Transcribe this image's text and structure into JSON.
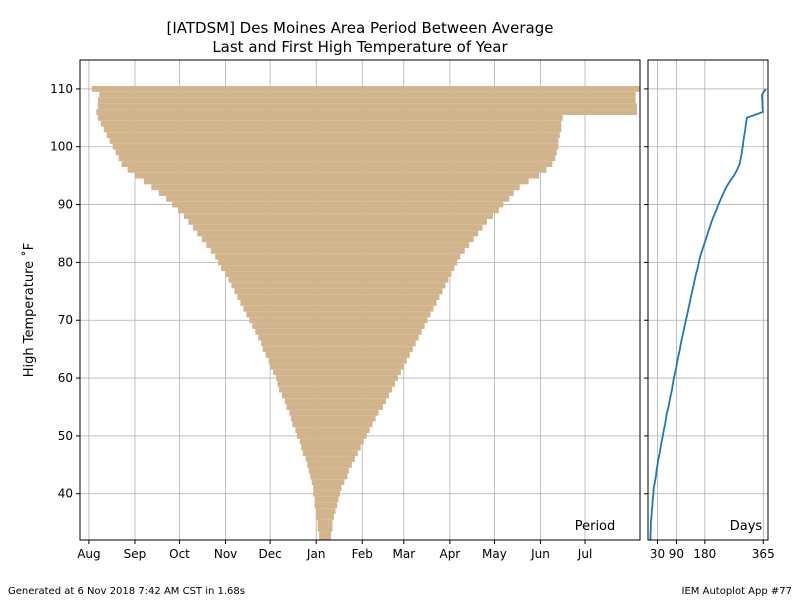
{
  "title_line1": "[IATDSM] Des Moines Area Period Between Average",
  "title_line2": "Last and First High Temperature of Year",
  "ylabel": "High Temperature $^\\circ$F",
  "ylabel_display": "High Temperature ˚F",
  "footer_left": "Generated at 6 Nov 2018 7:42 AM CST in 1.68s",
  "footer_right": "IEM Autoplot App #77",
  "colors": {
    "bar": "#d2b48c",
    "line": "#1f77b4",
    "grid": "#b0b0b0"
  },
  "chart_data": [
    {
      "type": "bar",
      "orientation": "horizontal",
      "annotation": "Period",
      "xlabel": "",
      "x_ticks": [
        "Aug",
        "Sep",
        "Oct",
        "Nov",
        "Dec",
        "Jan",
        "Feb",
        "Mar",
        "Apr",
        "May",
        "Jun",
        "Jul"
      ],
      "x_tick_days_from_aug1": [
        0,
        31,
        61,
        92,
        122,
        153,
        184,
        212,
        243,
        273,
        304,
        334
      ],
      "xlim_days_from_aug1": [
        -6,
        371
      ],
      "y_ticks": [
        40,
        50,
        60,
        70,
        80,
        90,
        100,
        110
      ],
      "ylim": [
        32,
        115
      ],
      "grid": true,
      "temps": [
        32,
        33,
        34,
        35,
        36,
        37,
        38,
        39,
        40,
        41,
        42,
        43,
        44,
        45,
        46,
        47,
        48,
        49,
        50,
        51,
        52,
        53,
        54,
        55,
        56,
        57,
        58,
        59,
        60,
        61,
        62,
        63,
        64,
        65,
        66,
        67,
        68,
        69,
        70,
        71,
        72,
        73,
        74,
        75,
        76,
        77,
        78,
        79,
        80,
        81,
        82,
        83,
        84,
        85,
        86,
        87,
        88,
        89,
        90,
        91,
        92,
        93,
        94,
        95,
        96,
        97,
        98,
        99,
        100,
        101,
        102,
        103,
        104,
        105,
        106,
        107,
        108,
        109,
        110
      ],
      "start_days_from_aug1": [
        155,
        155,
        154,
        154,
        153,
        153,
        152,
        152,
        151,
        151,
        150,
        149,
        148,
        147,
        146,
        144,
        143,
        142,
        140,
        139,
        137,
        136,
        135,
        133,
        132,
        130,
        128,
        127,
        126,
        124,
        122,
        121,
        119,
        117,
        116,
        114,
        112,
        110,
        108,
        106,
        104,
        102,
        100,
        98,
        96,
        94,
        92,
        89,
        87,
        85,
        82,
        79,
        76,
        73,
        70,
        67,
        64,
        60,
        56,
        52,
        47,
        42,
        37,
        31,
        26,
        22,
        20,
        18,
        16,
        14,
        12,
        10,
        8,
        6,
        5,
        6,
        6,
        7,
        2
      ],
      "end_days_from_aug1": [
        163,
        163,
        164,
        164,
        165,
        166,
        167,
        168,
        169,
        170,
        172,
        174,
        175,
        177,
        179,
        181,
        183,
        185,
        187,
        189,
        191,
        193,
        195,
        198,
        200,
        202,
        204,
        206,
        208,
        210,
        212,
        214,
        216,
        218,
        220,
        222,
        224,
        226,
        228,
        230,
        232,
        234,
        236,
        238,
        240,
        242,
        244,
        246,
        248,
        250,
        253,
        256,
        259,
        262,
        265,
        268,
        272,
        276,
        279,
        283,
        286,
        290,
        296,
        303,
        308,
        312,
        314,
        315,
        316,
        316,
        317,
        318,
        318,
        319,
        369,
        369,
        368,
        368,
        375
      ]
    },
    {
      "type": "line",
      "annotation": "Days",
      "xlabel": "",
      "x_ticks": [
        30,
        90,
        180,
        365
      ],
      "xlim": [
        0,
        380
      ],
      "y_ticks": [
        40,
        50,
        60,
        70,
        80,
        90,
        100,
        110
      ],
      "ylim": [
        32,
        115
      ],
      "grid": true,
      "x": [
        8,
        8,
        9,
        9,
        11,
        12,
        14,
        15,
        17,
        18,
        22,
        25,
        27,
        30,
        33,
        37,
        40,
        43,
        47,
        50,
        54,
        57,
        60,
        65,
        68,
        72,
        76,
        79,
        82,
        86,
        90,
        93,
        97,
        101,
        104,
        108,
        112,
        116,
        120,
        124,
        128,
        132,
        136,
        140,
        144,
        148,
        152,
        157,
        161,
        165,
        171,
        177,
        183,
        189,
        195,
        201,
        208,
        216,
        223,
        231,
        239,
        248,
        259,
        272,
        282,
        290,
        294,
        297,
        300,
        302,
        305,
        308,
        310,
        313,
        364,
        363,
        362,
        361,
        373
      ],
      "y": [
        32,
        33,
        34,
        35,
        36,
        37,
        38,
        39,
        40,
        41,
        42,
        43,
        44,
        45,
        46,
        47,
        48,
        49,
        50,
        51,
        52,
        53,
        54,
        55,
        56,
        57,
        58,
        59,
        60,
        61,
        62,
        63,
        64,
        65,
        66,
        67,
        68,
        69,
        70,
        71,
        72,
        73,
        74,
        75,
        76,
        77,
        78,
        79,
        80,
        81,
        82,
        83,
        84,
        85,
        86,
        87,
        88,
        89,
        90,
        91,
        92,
        93,
        94,
        95,
        96,
        97,
        98,
        99,
        100,
        101,
        102,
        103,
        104,
        105,
        106,
        107,
        108,
        109,
        110
      ]
    }
  ]
}
